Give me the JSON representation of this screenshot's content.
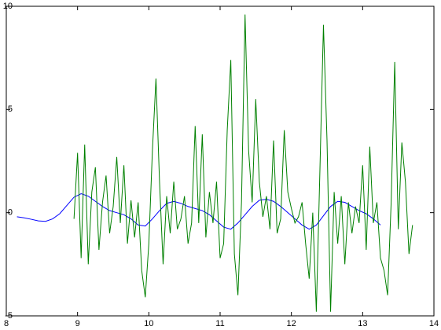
{
  "chart_data": {
    "type": "line",
    "xlim": [
      8,
      14
    ],
    "xticks": [
      8,
      9,
      10,
      11,
      12,
      13,
      14
    ],
    "ylim": [
      -5,
      10
    ],
    "yticks": [
      -5,
      0,
      5,
      10
    ],
    "series": [
      {
        "color": "#0000ff",
        "x": [
          8.15,
          8.25,
          8.35,
          8.45,
          8.55,
          8.65,
          8.75,
          8.85,
          8.95,
          9.05,
          9.15,
          9.25,
          9.35,
          9.45,
          9.55,
          9.65,
          9.75,
          9.85,
          9.95,
          10.05,
          10.15,
          10.25,
          10.35,
          10.45,
          10.55,
          10.65,
          10.75,
          10.85,
          10.95,
          11.05,
          11.15,
          11.25,
          11.35,
          11.45,
          11.55,
          11.65,
          11.75,
          11.85,
          11.95,
          12.05,
          12.15,
          12.25,
          12.35,
          12.45,
          12.55,
          12.65,
          12.75,
          12.85,
          12.95,
          13.05,
          13.15,
          13.25
        ],
        "values": [
          -0.2,
          -0.25,
          -0.32,
          -0.4,
          -0.42,
          -0.3,
          -0.05,
          0.35,
          0.75,
          0.92,
          0.8,
          0.55,
          0.3,
          0.1,
          0.0,
          -0.1,
          -0.3,
          -0.6,
          -0.65,
          -0.3,
          0.1,
          0.45,
          0.55,
          0.45,
          0.3,
          0.2,
          0.1,
          -0.1,
          -0.4,
          -0.7,
          -0.8,
          -0.5,
          -0.1,
          0.3,
          0.6,
          0.65,
          0.55,
          0.3,
          0.0,
          -0.3,
          -0.6,
          -0.8,
          -0.6,
          -0.15,
          0.3,
          0.55,
          0.5,
          0.3,
          0.1,
          -0.05,
          -0.3,
          -0.6
        ]
      },
      {
        "color": "#008000",
        "x": [
          8.95,
          9.0,
          9.05,
          9.1,
          9.15,
          9.2,
          9.25,
          9.3,
          9.35,
          9.4,
          9.45,
          9.5,
          9.55,
          9.6,
          9.65,
          9.7,
          9.75,
          9.8,
          9.85,
          9.9,
          9.95,
          10.0,
          10.05,
          10.1,
          10.15,
          10.2,
          10.25,
          10.3,
          10.35,
          10.4,
          10.45,
          10.5,
          10.55,
          10.6,
          10.65,
          10.7,
          10.75,
          10.8,
          10.85,
          10.9,
          10.95,
          11.0,
          11.05,
          11.1,
          11.15,
          11.2,
          11.25,
          11.3,
          11.35,
          11.4,
          11.45,
          11.5,
          11.55,
          11.6,
          11.65,
          11.7,
          11.75,
          11.8,
          11.85,
          11.9,
          11.95,
          12.0,
          12.05,
          12.1,
          12.15,
          12.2,
          12.25,
          12.3,
          12.35,
          12.4,
          12.45,
          12.5,
          12.55,
          12.6,
          12.65,
          12.7,
          12.75,
          12.8,
          12.85,
          12.9,
          12.95,
          13.0,
          13.05,
          13.1,
          13.15,
          13.2,
          13.25,
          13.3,
          13.35,
          13.4,
          13.45,
          13.5,
          13.55,
          13.6,
          13.65,
          13.7
        ],
        "values": [
          -0.3,
          2.9,
          -2.2,
          3.3,
          -2.5,
          1.0,
          2.2,
          -1.8,
          0.5,
          1.8,
          -1.0,
          0.3,
          2.7,
          -0.5,
          2.3,
          -1.5,
          0.6,
          -1.2,
          0.5,
          -2.8,
          -4.1,
          -1.5,
          3.0,
          6.5,
          1.5,
          -2.5,
          0.8,
          -1.0,
          1.5,
          -0.8,
          -0.3,
          0.8,
          -1.5,
          -0.5,
          4.2,
          -0.5,
          3.8,
          -1.2,
          1.0,
          -0.5,
          1.5,
          -2.2,
          -1.5,
          4.0,
          7.4,
          -2.0,
          -4.0,
          0.5,
          9.6,
          3.0,
          0.5,
          5.5,
          1.5,
          -0.2,
          0.8,
          -0.8,
          3.5,
          -1.0,
          -0.3,
          4.0,
          1.0,
          0.2,
          -0.5,
          -0.2,
          0.5,
          -1.5,
          -3.2,
          0.0,
          -4.8,
          2.0,
          9.1,
          3.5,
          -4.8,
          1.0,
          -1.5,
          0.8,
          -2.5,
          0.5,
          -1.0,
          0.3,
          -0.5,
          2.3,
          -1.8,
          3.2,
          -0.5,
          0.5,
          -2.2,
          -2.8,
          -4.0,
          0.5,
          7.3,
          -0.8,
          3.4,
          1.5,
          -2.0,
          -0.6
        ]
      }
    ]
  }
}
